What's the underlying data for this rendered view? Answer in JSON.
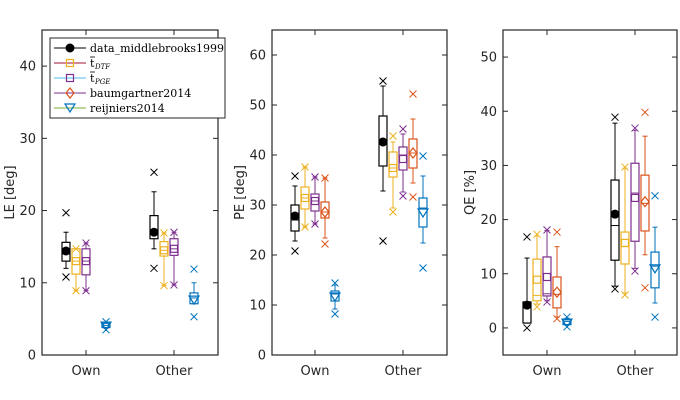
{
  "chart_data": [
    {
      "type": "box",
      "ylabel": "LE [deg]",
      "ylim": [
        0,
        45
      ],
      "yticks": [
        0,
        10,
        20,
        30,
        40
      ],
      "categories": [
        "Own",
        "Other"
      ],
      "legend": {
        "placement": "top-left",
        "entries": [
          {
            "label": "data_middlebrooks1999",
            "marker": "circle-filled",
            "line_color": "#000000",
            "marker_color": "#000000"
          },
          {
            "label": "t",
            "subscript": "DTF",
            "overbar": true,
            "marker": "square",
            "line_color": "#A2142F",
            "marker_color": "#EDB120"
          },
          {
            "label": "t",
            "subscript": "PGE",
            "overbar": true,
            "marker": "square",
            "line_color": "#4DBEEE",
            "marker_color": "#7E2F8E"
          },
          {
            "label": "baumgartner2014",
            "marker": "diamond",
            "line_color": "#7E2F8E",
            "marker_color": "#D95319"
          },
          {
            "label": "reijniers2014",
            "marker": "triangle-down",
            "line_color": "#77AC30",
            "marker_color": "#0072BD"
          }
        ]
      },
      "series": [
        {
          "name": "data_middlebrooks1999",
          "color": "#000000",
          "marker": "circle-filled",
          "groups": [
            {
              "category": "Own",
              "whisker_low": 12.0,
              "q1": 13.0,
              "median": 14.0,
              "q3": 15.6,
              "whisker_high": 17.0,
              "center": 14.4,
              "outliers": [
                19.7,
                10.8
              ]
            },
            {
              "category": "Other",
              "whisker_low": 14.7,
              "q1": 16.1,
              "median": 17.0,
              "q3": 19.3,
              "whisker_high": 22.6,
              "center": 17.0,
              "outliers": [
                25.3,
                12.0
              ]
            }
          ]
        },
        {
          "name": "t_DTF",
          "color": "#EDB120",
          "marker": "square",
          "groups": [
            {
              "category": "Own",
              "whisker_low": 8.9,
              "q1": 11.2,
              "median": 13.0,
              "q3": 14.7,
              "whisker_high": 14.7,
              "center": 13.0,
              "outliers": [
                14.7,
                8.9
              ]
            },
            {
              "category": "Other",
              "whisker_low": 9.6,
              "q1": 13.7,
              "median": 14.5,
              "q3": 15.7,
              "whisker_high": 16.9,
              "center": 14.5,
              "outliers": [
                16.9,
                9.6
              ]
            }
          ]
        },
        {
          "name": "t_PGE",
          "color": "#7E2F8E",
          "marker": "square",
          "groups": [
            {
              "category": "Own",
              "whisker_low": 8.9,
              "q1": 11.1,
              "median": 13.0,
              "q3": 14.7,
              "whisker_high": 15.5,
              "center": 13.0,
              "outliers": [
                15.5,
                8.9
              ]
            },
            {
              "category": "Other",
              "whisker_low": 9.7,
              "q1": 13.8,
              "median": 14.7,
              "q3": 16.1,
              "whisker_high": 17.0,
              "center": 14.7,
              "outliers": [
                17.0,
                9.7
              ]
            }
          ]
        },
        {
          "name": "reijniers2014",
          "color": "#0072BD",
          "marker": "triangle-down",
          "groups": [
            {
              "category": "Own",
              "whisker_low": 3.7,
              "q1": 3.8,
              "median": 4.1,
              "q3": 4.4,
              "whisker_high": 4.5,
              "center": 4.0,
              "outliers": [
                4.6,
                3.5
              ]
            },
            {
              "category": "Other",
              "whisker_low": 7.1,
              "q1": 7.1,
              "median": 7.9,
              "q3": 8.6,
              "whisker_high": 10.0,
              "center": 7.6,
              "outliers": [
                11.9,
                5.3
              ]
            }
          ]
        }
      ]
    },
    {
      "type": "box",
      "ylabel": "PE [deg]",
      "ylim": [
        0,
        65
      ],
      "yticks": [
        0,
        10,
        20,
        30,
        40,
        50,
        60
      ],
      "categories": [
        "Own",
        "Other"
      ],
      "series": [
        {
          "name": "data_middlebrooks1999",
          "color": "#000000",
          "marker": "circle-filled",
          "groups": [
            {
              "category": "Own",
              "whisker_low": 22.8,
              "q1": 24.8,
              "median": 27.0,
              "q3": 30.0,
              "whisker_high": 33.8,
              "center": 27.8,
              "outliers": [
                35.8,
                20.8
              ]
            },
            {
              "category": "Other",
              "whisker_low": 32.8,
              "q1": 37.8,
              "median": 42.6,
              "q3": 47.8,
              "whisker_high": 53.8,
              "center": 42.6,
              "outliers": [
                54.8,
                22.8
              ]
            }
          ]
        },
        {
          "name": "t_DTF",
          "color": "#EDB120",
          "marker": "square",
          "groups": [
            {
              "category": "Own",
              "whisker_low": 25.6,
              "q1": 29.2,
              "median": 31.4,
              "q3": 33.6,
              "whisker_high": 37.6,
              "center": 31.4,
              "outliers": [
                37.6,
                25.6
              ]
            },
            {
              "category": "Other",
              "whisker_low": 29.4,
              "q1": 35.6,
              "median": 37.4,
              "q3": 40.6,
              "whisker_high": 42.6,
              "center": 37.4,
              "outliers": [
                43.8,
                28.6
              ]
            }
          ]
        },
        {
          "name": "t_PGE",
          "color": "#7E2F8E",
          "marker": "square",
          "groups": [
            {
              "category": "Own",
              "whisker_low": 26.2,
              "q1": 28.8,
              "median": 30.8,
              "q3": 32.2,
              "whisker_high": 35.6,
              "center": 30.8,
              "outliers": [
                35.6,
                26.2
              ]
            },
            {
              "category": "Other",
              "whisker_low": 32.6,
              "q1": 37.0,
              "median": 40.0,
              "q3": 41.6,
              "whisker_high": 44.2,
              "center": 39.2,
              "outliers": [
                45.2,
                31.8
              ]
            }
          ]
        },
        {
          "name": "baumgartner2014",
          "color": "#D95319",
          "marker": "diamond",
          "groups": [
            {
              "category": "Own",
              "whisker_low": 23.4,
              "q1": 27.4,
              "median": 28.6,
              "q3": 30.6,
              "whisker_high": 35.4,
              "center": 28.6,
              "outliers": [
                35.4,
                22.2
              ]
            },
            {
              "category": "Other",
              "whisker_low": 34.4,
              "q1": 37.4,
              "median": 40.4,
              "q3": 43.2,
              "whisker_high": 47.2,
              "center": 40.4,
              "outliers": [
                52.2,
                31.6
              ]
            }
          ]
        },
        {
          "name": "reijniers2014",
          "color": "#0072BD",
          "marker": "triangle-down",
          "groups": [
            {
              "category": "Own",
              "whisker_low": 9.2,
              "q1": 10.8,
              "median": 12.2,
              "q3": 12.8,
              "whisker_high": 14.0,
              "center": 11.6,
              "outliers": [
                14.4,
                8.2
              ]
            },
            {
              "category": "Other",
              "whisker_low": 22.4,
              "q1": 25.6,
              "median": 29.4,
              "q3": 31.4,
              "whisker_high": 35.8,
              "center": 28.4,
              "outliers": [
                39.8,
                17.4
              ]
            }
          ]
        }
      ]
    },
    {
      "type": "box",
      "ylabel": "QE [%]",
      "ylim": [
        -5,
        55
      ],
      "yticks": [
        0,
        10,
        20,
        30,
        40,
        50
      ],
      "categories": [
        "Own",
        "Other"
      ],
      "series": [
        {
          "name": "data_middlebrooks1999",
          "color": "#000000",
          "marker": "circle-filled",
          "groups": [
            {
              "category": "Own",
              "whisker_low": 0.9,
              "q1": 0.9,
              "median": 3.8,
              "q3": 4.8,
              "whisker_high": 12.9,
              "center": 4.2,
              "outliers": [
                16.8,
                0.0
              ]
            },
            {
              "category": "Other",
              "whisker_low": 7.7,
              "q1": 12.5,
              "median": 18.9,
              "q3": 27.3,
              "whisker_high": 37.8,
              "center": 21.0,
              "outliers": [
                38.9,
                7.2
              ]
            }
          ]
        },
        {
          "name": "t_DTF",
          "color": "#EDB120",
          "marker": "square",
          "groups": [
            {
              "category": "Own",
              "whisker_low": 4.4,
              "q1": 5.0,
              "median": 6.0,
              "q3": 12.7,
              "whisker_high": 17.0,
              "center": 8.9,
              "outliers": [
                17.3,
                3.9
              ]
            },
            {
              "category": "Other",
              "whisker_low": 6.4,
              "q1": 11.8,
              "median": 15.0,
              "q3": 17.7,
              "whisker_high": 29.5,
              "center": 15.7,
              "outliers": [
                29.7,
                6.1
              ]
            }
          ]
        },
        {
          "name": "t_PGE",
          "color": "#7E2F8E",
          "marker": "square",
          "groups": [
            {
              "category": "Own",
              "whisker_low": 5.0,
              "q1": 5.9,
              "median": 6.3,
              "q3": 13.1,
              "whisker_high": 18.0,
              "center": 9.4,
              "outliers": [
                18.1,
                4.8
              ]
            },
            {
              "category": "Other",
              "whisker_low": 11.0,
              "q1": 16.0,
              "median": 24.9,
              "q3": 30.4,
              "whisker_high": 36.5,
              "center": 24.0,
              "outliers": [
                36.9,
                10.5
              ]
            }
          ]
        },
        {
          "name": "baumgartner2014",
          "color": "#D95319",
          "marker": "diamond",
          "groups": [
            {
              "category": "Own",
              "whisker_low": 2.0,
              "q1": 3.7,
              "median": 6.2,
              "q3": 9.4,
              "whisker_high": 15.0,
              "center": 6.6,
              "outliers": [
                17.7,
                1.7
              ]
            },
            {
              "category": "Other",
              "whisker_low": 13.5,
              "q1": 17.9,
              "median": 23.0,
              "q3": 28.2,
              "whisker_high": 35.4,
              "center": 23.3,
              "outliers": [
                39.8,
                7.4
              ]
            }
          ]
        },
        {
          "name": "reijniers2014",
          "color": "#0072BD",
          "marker": "triangle-down",
          "groups": [
            {
              "category": "Own",
              "whisker_low": 0.5,
              "q1": 0.6,
              "median": 1.2,
              "q3": 1.5,
              "whisker_high": 1.8,
              "center": 0.9,
              "outliers": [
                2.0,
                0.2
              ]
            },
            {
              "category": "Other",
              "whisker_low": 4.6,
              "q1": 7.4,
              "median": 11.4,
              "q3": 14.0,
              "whisker_high": 18.6,
              "center": 10.9,
              "outliers": [
                24.4,
                2.0
              ]
            }
          ]
        }
      ]
    }
  ]
}
